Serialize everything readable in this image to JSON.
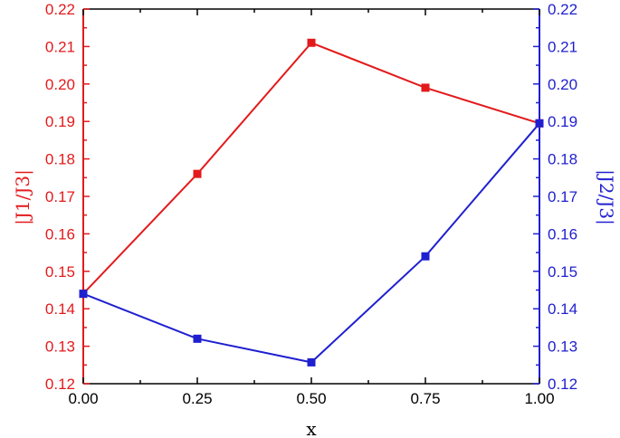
{
  "chart_data": {
    "type": "line",
    "x": [
      0.0,
      0.25,
      0.5,
      0.75,
      1.0
    ],
    "x_ticks": [
      "0.00",
      "0.25",
      "0.50",
      "0.75",
      "1.00"
    ],
    "xlabel": "x",
    "xlim": [
      0.0,
      1.0
    ],
    "left_axis": {
      "label": "|J1/J3|",
      "ylim": [
        0.12,
        0.22
      ],
      "ticks": [
        "0.12",
        "0.13",
        "0.14",
        "0.15",
        "0.16",
        "0.17",
        "0.18",
        "0.19",
        "0.20",
        "0.21",
        "0.22"
      ],
      "color": "#e31a1c"
    },
    "right_axis": {
      "label": "|J2/J3|",
      "ylim": [
        0.12,
        0.22
      ],
      "ticks": [
        "0.12",
        "0.13",
        "0.14",
        "0.15",
        "0.16",
        "0.17",
        "0.18",
        "0.19",
        "0.20",
        "0.21",
        "0.22"
      ],
      "color": "#1f1fd0"
    },
    "series": [
      {
        "axis": "left",
        "color": "#e31a1c",
        "values": [
          0.144,
          0.176,
          0.211,
          0.199,
          0.1895
        ]
      },
      {
        "axis": "right",
        "color": "#1f1fd0",
        "values": [
          0.144,
          0.132,
          0.1257,
          0.154,
          0.1895
        ]
      }
    ],
    "grid": false,
    "marker": "square"
  }
}
